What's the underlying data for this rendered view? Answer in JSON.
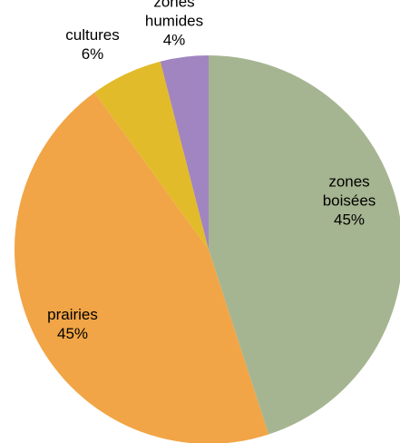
{
  "chart_data": {
    "type": "pie",
    "start_angle_deg": 0,
    "direction": "clockwise",
    "slices": [
      {
        "label_lines": [
          "zones",
          "boisées"
        ],
        "value": 45,
        "value_label": "45%",
        "color": "#A6B591"
      },
      {
        "label_lines": [
          "prairies"
        ],
        "value": 45,
        "value_label": "45%",
        "color": "#F1A546"
      },
      {
        "label_lines": [
          "cultures"
        ],
        "value": 6,
        "value_label": "6%",
        "color": "#E2BB2A"
      },
      {
        "label_lines": [
          "zones",
          "humides"
        ],
        "value": 4,
        "value_label": "4%",
        "color": "#A085C0"
      }
    ]
  }
}
